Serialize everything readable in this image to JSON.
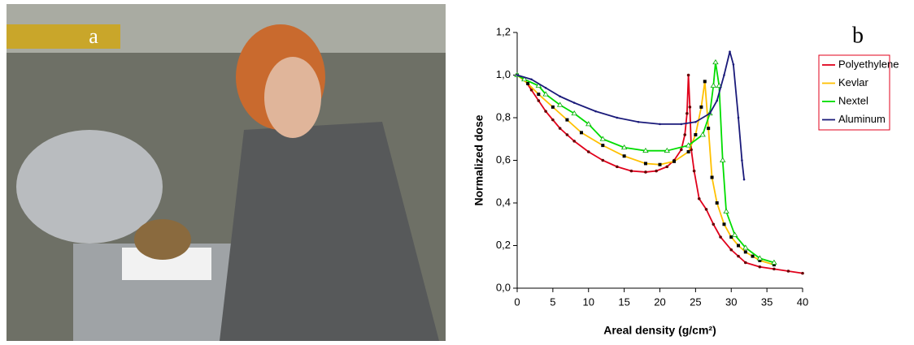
{
  "panel_labels": [
    "a",
    "b"
  ],
  "chart_data": {
    "type": "line",
    "x_label": "Areal density (g/cm²)",
    "y_label": "Normalized dose",
    "xlim": [
      0,
      40
    ],
    "xticks": [
      0,
      5,
      10,
      15,
      20,
      25,
      30,
      35,
      40
    ],
    "ylim": [
      0,
      1.2
    ],
    "yticks": [
      {
        "value": 0,
        "label": "0,0"
      },
      {
        "value": 0.2,
        "label": "0,2"
      },
      {
        "value": 0.4,
        "label": "0,4"
      },
      {
        "value": 0.6,
        "label": "0,6"
      },
      {
        "value": 0.8,
        "label": "0,8"
      },
      {
        "value": 1.0,
        "label": "1,0"
      },
      {
        "value": 1.2,
        "label": "1,2"
      }
    ],
    "legend": "upper right",
    "series": [
      {
        "name": "Polyethylene",
        "color": "#e0001b",
        "marker": "circle",
        "x": [
          0,
          1,
          2,
          3,
          4,
          5,
          6,
          7,
          8,
          10,
          12,
          14,
          16,
          18,
          19.5,
          21,
          22,
          23,
          23.5,
          23.8,
          24,
          24.2,
          24.4,
          24.8,
          25.5,
          26.5,
          27.5,
          28.5,
          30,
          31,
          32,
          34,
          36,
          38,
          40
        ],
        "values": [
          1.0,
          0.98,
          0.93,
          0.88,
          0.83,
          0.79,
          0.75,
          0.72,
          0.69,
          0.64,
          0.6,
          0.57,
          0.55,
          0.545,
          0.55,
          0.57,
          0.6,
          0.65,
          0.72,
          0.82,
          1.0,
          0.85,
          0.65,
          0.55,
          0.42,
          0.37,
          0.3,
          0.24,
          0.18,
          0.15,
          0.12,
          0.1,
          0.09,
          0.08,
          0.07
        ]
      },
      {
        "name": "Kevlar",
        "color": "#ffc000",
        "marker": "square",
        "x": [
          0,
          1.5,
          3,
          5,
          7,
          9,
          12,
          15,
          18,
          20,
          22,
          24,
          25,
          25.8,
          26.3,
          26.8,
          27.3,
          28,
          29,
          30,
          31,
          32,
          33,
          34,
          36
        ],
        "values": [
          1.0,
          0.96,
          0.91,
          0.85,
          0.79,
          0.73,
          0.67,
          0.62,
          0.585,
          0.58,
          0.595,
          0.64,
          0.72,
          0.85,
          0.97,
          0.75,
          0.52,
          0.4,
          0.3,
          0.24,
          0.2,
          0.17,
          0.15,
          0.13,
          0.11
        ]
      },
      {
        "name": "Nextel",
        "color": "#00dd00",
        "marker": "triangle",
        "x": [
          0,
          1,
          3,
          4,
          6,
          8,
          10,
          12,
          15,
          18,
          21,
          24,
          26,
          27,
          27.5,
          27.8,
          28.3,
          28.8,
          29.3,
          30.5,
          32,
          34,
          36
        ],
        "values": [
          1.0,
          0.98,
          0.95,
          0.91,
          0.86,
          0.82,
          0.77,
          0.7,
          0.66,
          0.645,
          0.645,
          0.67,
          0.72,
          0.82,
          0.95,
          1.06,
          0.95,
          0.6,
          0.36,
          0.25,
          0.19,
          0.14,
          0.12
        ]
      },
      {
        "name": "Aluminum",
        "color": "#1a1a7a",
        "marker": "dot",
        "x": [
          0,
          2,
          4,
          6,
          8,
          11,
          14,
          17,
          20,
          23,
          25,
          27,
          28,
          29,
          29.8,
          30.3,
          31,
          31.5,
          31.8
        ],
        "values": [
          1.0,
          0.98,
          0.94,
          0.9,
          0.87,
          0.83,
          0.8,
          0.78,
          0.77,
          0.77,
          0.78,
          0.82,
          0.88,
          1.0,
          1.11,
          1.05,
          0.8,
          0.6,
          0.51
        ]
      }
    ]
  }
}
